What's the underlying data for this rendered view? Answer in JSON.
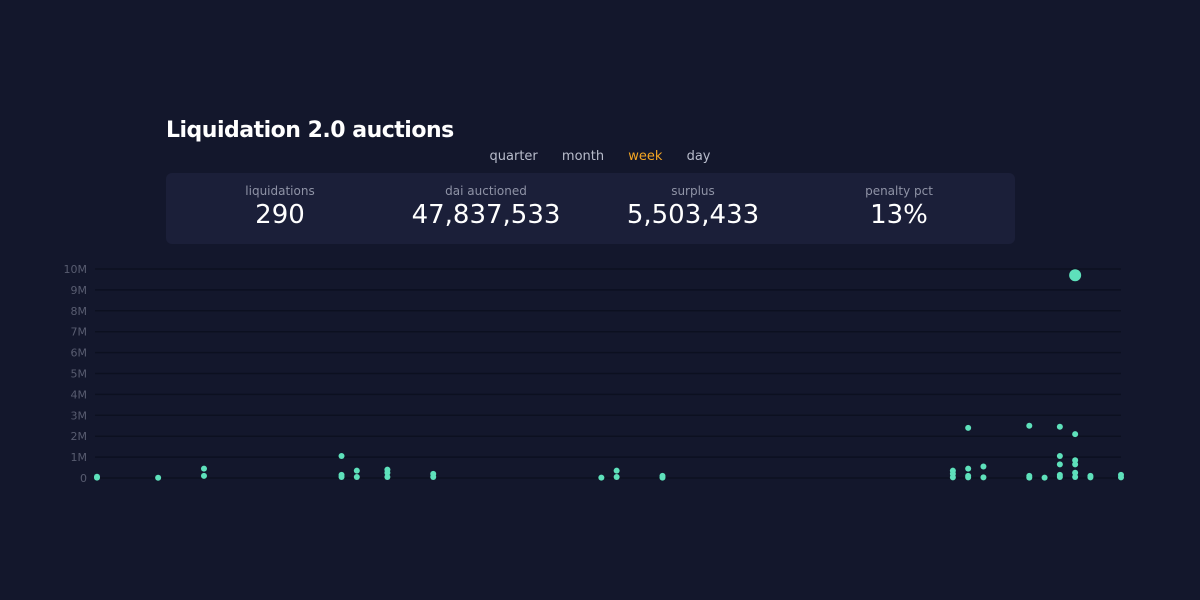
{
  "title": "Liquidation 2.0 auctions",
  "tabs": [
    {
      "label": "quarter",
      "active": false
    },
    {
      "label": "month",
      "active": false
    },
    {
      "label": "week",
      "active": true
    },
    {
      "label": "day",
      "active": false
    }
  ],
  "stats": [
    {
      "label": "liquidations",
      "value": "290"
    },
    {
      "label": "dai auctioned",
      "value": "47,837,533"
    },
    {
      "label": "surplus",
      "value": "5,503,433"
    },
    {
      "label": "penalty pct",
      "value": "13%"
    }
  ],
  "colors": {
    "background": "#13172c",
    "panel": "#1b1f39",
    "accent": "#f5a623",
    "point": "#5ee1bb",
    "gridline": "#0c1020"
  },
  "chart_data": {
    "type": "scatter",
    "x_unit": "day index",
    "xlim": [
      0,
      67
    ],
    "ylim": [
      0,
      10000000
    ],
    "y_ticks": [
      {
        "value": 0,
        "label": "0"
      },
      {
        "value": 1000000,
        "label": "1M"
      },
      {
        "value": 2000000,
        "label": "2M"
      },
      {
        "value": 3000000,
        "label": "3M"
      },
      {
        "value": 4000000,
        "label": "4M"
      },
      {
        "value": 5000000,
        "label": "5M"
      },
      {
        "value": 6000000,
        "label": "6M"
      },
      {
        "value": 7000000,
        "label": "7M"
      },
      {
        "value": 8000000,
        "label": "8M"
      },
      {
        "value": 9000000,
        "label": "9M"
      },
      {
        "value": 10000000,
        "label": "10M"
      }
    ],
    "grid": true,
    "series": [
      {
        "points": [
          {
            "x": 0,
            "y": 20000
          },
          {
            "x": 0,
            "y": 60000
          },
          {
            "x": 4,
            "y": 10000
          },
          {
            "x": 7,
            "y": 450000
          },
          {
            "x": 7,
            "y": 100000
          },
          {
            "x": 16,
            "y": 1050000
          },
          {
            "x": 16,
            "y": 150000
          },
          {
            "x": 16,
            "y": 50000
          },
          {
            "x": 17,
            "y": 350000
          },
          {
            "x": 17,
            "y": 50000
          },
          {
            "x": 19,
            "y": 400000
          },
          {
            "x": 19,
            "y": 250000
          },
          {
            "x": 19,
            "y": 50000
          },
          {
            "x": 22,
            "y": 200000
          },
          {
            "x": 22,
            "y": 50000
          },
          {
            "x": 33,
            "y": 20000
          },
          {
            "x": 34,
            "y": 350000
          },
          {
            "x": 34,
            "y": 50000
          },
          {
            "x": 37,
            "y": 100000
          },
          {
            "x": 37,
            "y": 20000
          },
          {
            "x": 56,
            "y": 350000
          },
          {
            "x": 56,
            "y": 200000
          },
          {
            "x": 56,
            "y": 30000
          },
          {
            "x": 57,
            "y": 2400000
          },
          {
            "x": 57,
            "y": 450000
          },
          {
            "x": 57,
            "y": 100000
          },
          {
            "x": 57,
            "y": 30000
          },
          {
            "x": 58,
            "y": 550000
          },
          {
            "x": 58,
            "y": 30000
          },
          {
            "x": 61,
            "y": 2500000
          },
          {
            "x": 61,
            "y": 100000
          },
          {
            "x": 61,
            "y": 20000
          },
          {
            "x": 62,
            "y": 20000
          },
          {
            "x": 63,
            "y": 2450000
          },
          {
            "x": 63,
            "y": 1050000
          },
          {
            "x": 63,
            "y": 650000
          },
          {
            "x": 63,
            "y": 150000
          },
          {
            "x": 63,
            "y": 50000
          },
          {
            "x": 64,
            "y": 9700000,
            "size": "large"
          },
          {
            "x": 64,
            "y": 2100000
          },
          {
            "x": 64,
            "y": 850000
          },
          {
            "x": 64,
            "y": 650000
          },
          {
            "x": 64,
            "y": 250000
          },
          {
            "x": 64,
            "y": 50000
          },
          {
            "x": 65,
            "y": 100000
          },
          {
            "x": 65,
            "y": 30000
          },
          {
            "x": 67,
            "y": 150000
          },
          {
            "x": 67,
            "y": 30000
          }
        ]
      }
    ]
  }
}
